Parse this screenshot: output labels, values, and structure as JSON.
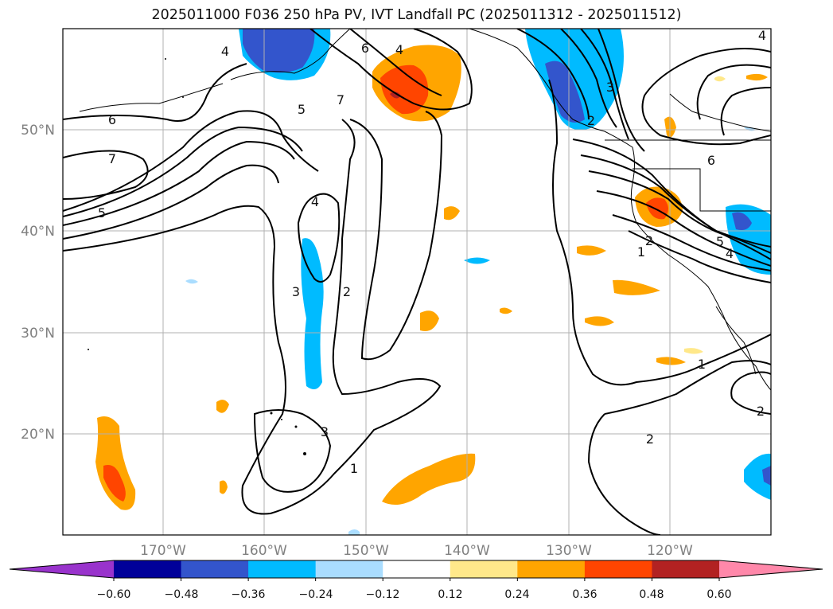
{
  "title": "2025011000 F036 250 hPa PV, IVT Landfall PC (2025011312 - 2025011512)",
  "lon_labels": [
    "170°W",
    "160°W",
    "150°W",
    "140°W",
    "130°W",
    "120°W"
  ],
  "lat_labels": [
    "50°N",
    "40°N",
    "30°N",
    "20°N"
  ],
  "colorbar": {
    "colors": [
      "#9933cc",
      "#000099",
      "#3355cc",
      "#00bbff",
      "#aaddff",
      "#ffffff",
      "#ffe88a",
      "#ffa500",
      "#ff4500",
      "#b22222",
      "#ff88aa"
    ],
    "tick_labels": [
      "−0.60",
      "−0.48",
      "−0.36",
      "−0.24",
      "−0.12",
      "0.12",
      "0.24",
      "0.36",
      "0.48",
      "0.60"
    ]
  },
  "contour_labels": [
    "4",
    "6",
    "4",
    "5",
    "7",
    "6",
    "7",
    "5",
    "4",
    "3",
    "2",
    "3",
    "1",
    "3",
    "2",
    "6",
    "2",
    "1",
    "5",
    "4",
    "1",
    "2",
    "2",
    "4"
  ]
}
